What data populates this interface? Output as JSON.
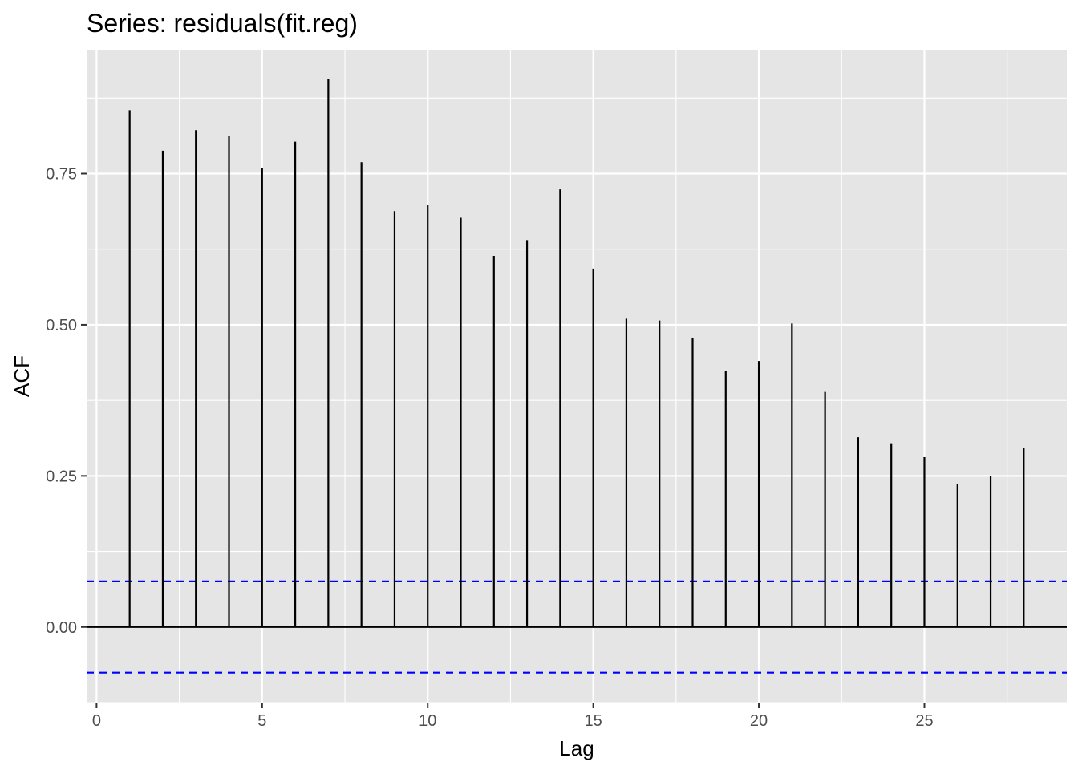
{
  "chart_data": {
    "type": "bar",
    "title": "Series: residuals(fit.reg)",
    "xlabel": "Lag",
    "ylabel": "ACF",
    "x": [
      1,
      2,
      3,
      4,
      5,
      6,
      7,
      8,
      9,
      10,
      11,
      12,
      13,
      14,
      15,
      16,
      17,
      18,
      19,
      20,
      21,
      22,
      23,
      24,
      25,
      26,
      27,
      28
    ],
    "values": [
      0.855,
      0.788,
      0.822,
      0.812,
      0.759,
      0.803,
      0.907,
      0.769,
      0.688,
      0.699,
      0.677,
      0.614,
      0.64,
      0.724,
      0.593,
      0.51,
      0.507,
      0.478,
      0.423,
      0.44,
      0.502,
      0.389,
      0.314,
      0.304,
      0.281,
      0.237,
      0.25,
      0.296
    ],
    "confidence_bounds": [
      0.0755,
      -0.0755
    ],
    "xlim": [
      -0.3,
      29.3
    ],
    "ylim": [
      -0.125,
      0.955
    ],
    "x_ticks": [
      0,
      5,
      10,
      15,
      20,
      25
    ],
    "x_tick_labels": [
      "0",
      "5",
      "10",
      "15",
      "20",
      "25"
    ],
    "y_ticks": [
      0,
      0.25,
      0.5,
      0.75
    ],
    "y_tick_labels": [
      "0.00",
      "0.25",
      "0.50",
      "0.75"
    ],
    "grid": true,
    "colors": {
      "panel": "#e5e5e5",
      "grid": "#ffffff",
      "segment": "#000000",
      "bound": "#0000ff"
    }
  }
}
